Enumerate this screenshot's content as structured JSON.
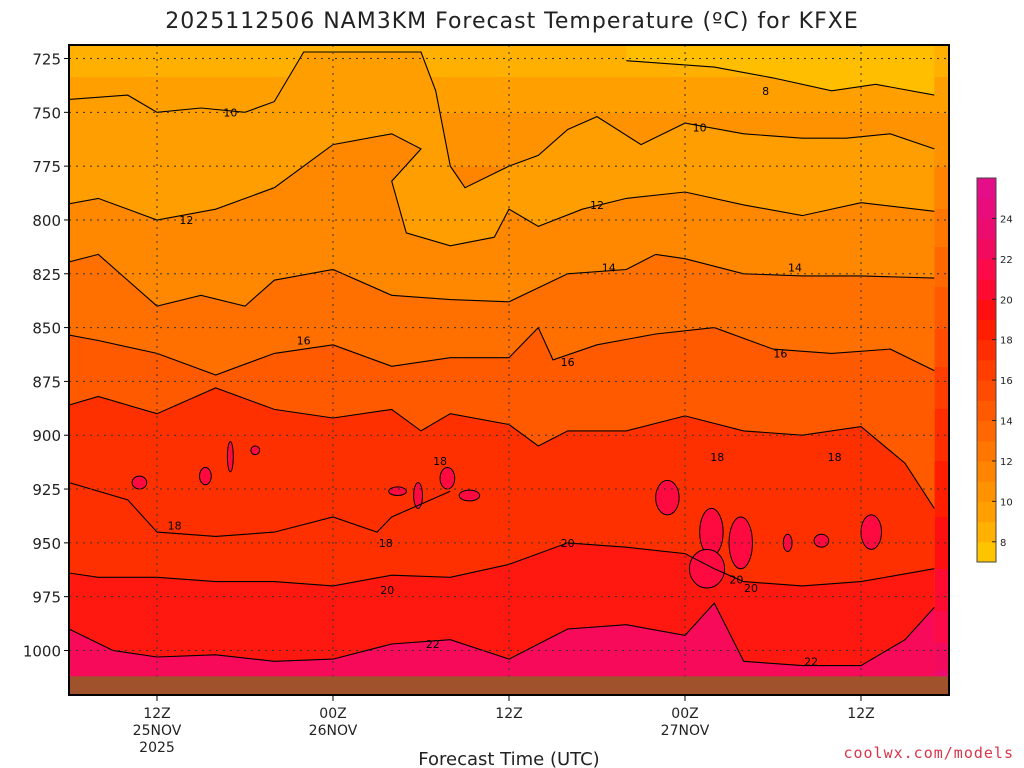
{
  "chart_data": {
    "type": "heatmap",
    "title": "2025112506 NAM3KM Forecast Temperature (ºC) for KFXE",
    "xlabel": "Forecast Time (UTC)",
    "ylabel": "",
    "credit": "coolwx.com/models",
    "y_axis": {
      "ticks": [
        "725",
        "750",
        "775",
        "800",
        "825",
        "850",
        "875",
        "900",
        "925",
        "950",
        "975",
        "1000"
      ],
      "range": [
        1030,
        720
      ],
      "units": "hPa"
    },
    "x_axis": {
      "range_hours": [
        -6,
        54
      ],
      "ticks": [
        {
          "hour": 6,
          "line1": "12Z",
          "line2": "25NOV",
          "line3": "2025"
        },
        {
          "hour": 18,
          "line1": "00Z",
          "line2": "26NOV",
          "line3": ""
        },
        {
          "hour": 30,
          "line1": "12Z",
          "line2": "",
          "line3": ""
        },
        {
          "hour": 42,
          "line1": "00Z",
          "line2": "27NOV",
          "line3": ""
        },
        {
          "hour": 54,
          "line1": "12Z",
          "line2": "",
          "line3": ""
        }
      ]
    },
    "colorbar": {
      "ticks": [
        "8",
        "10",
        "12",
        "14",
        "16",
        "18",
        "20",
        "22",
        "24"
      ],
      "levels": [
        7,
        8,
        9,
        10,
        11,
        12,
        13,
        14,
        15,
        16,
        17,
        18,
        19,
        20,
        21,
        22,
        23,
        24,
        25,
        26
      ],
      "colors": [
        "#ffc400",
        "#ffb000",
        "#ffa000",
        "#ff9200",
        "#ff8400",
        "#ff7600",
        "#ff6800",
        "#ff5a00",
        "#ff4c00",
        "#ff3e00",
        "#ff2e00",
        "#ff1e00",
        "#ff1010",
        "#ff0a30",
        "#fc0a4a",
        "#f20a5e",
        "#ec0b6e",
        "#e80c7c",
        "#e40e88"
      ]
    },
    "ground_color": "#a0522d",
    "temperature_profile": {
      "pressure_levels": [
        725,
        750,
        775,
        800,
        825,
        850,
        875,
        900,
        925,
        950,
        975,
        1000,
        1012
      ],
      "temperatures_c": [
        8.5,
        10.0,
        11.0,
        12.3,
        13.7,
        15.0,
        16.4,
        17.6,
        18.5,
        19.5,
        20.6,
        22.3,
        23.2
      ]
    },
    "contours": [
      {
        "label": "8",
        "series": [
          {
            "hour": 38,
            "p": 726
          },
          {
            "hour": 44,
            "p": 729
          },
          {
            "hour": 48,
            "p": 734
          },
          {
            "hour": 52,
            "p": 740
          },
          {
            "hour": 55,
            "p": 737
          },
          {
            "hour": 59,
            "p": 742
          }
        ]
      },
      {
        "label": "10",
        "series": [
          {
            "hour": -6,
            "p": 757
          },
          {
            "hour": -4,
            "p": 742
          },
          {
            "hour": 0,
            "p": 744
          },
          {
            "hour": 4,
            "p": 742
          },
          {
            "hour": 6,
            "p": 750
          },
          {
            "hour": 9,
            "p": 748
          },
          {
            "hour": 12,
            "p": 750
          },
          {
            "hour": 14,
            "p": 745
          },
          {
            "hour": 16,
            "p": 722
          },
          {
            "hour": 24,
            "p": 722
          },
          {
            "hour": 25,
            "p": 740
          },
          {
            "hour": 26,
            "p": 775
          },
          {
            "hour": 27,
            "p": 785
          },
          {
            "hour": 30,
            "p": 775
          },
          {
            "hour": 32,
            "p": 770
          },
          {
            "hour": 34,
            "p": 758
          },
          {
            "hour": 36,
            "p": 752
          },
          {
            "hour": 39,
            "p": 765
          },
          {
            "hour": 42,
            "p": 755
          },
          {
            "hour": 46,
            "p": 760
          },
          {
            "hour": 50,
            "p": 762
          },
          {
            "hour": 53,
            "p": 762
          },
          {
            "hour": 56,
            "p": 760
          },
          {
            "hour": 59,
            "p": 767
          }
        ]
      },
      {
        "label": "12",
        "series": [
          {
            "hour": -6,
            "p": 798
          },
          {
            "hour": -2,
            "p": 795
          },
          {
            "hour": 2,
            "p": 790
          },
          {
            "hour": 6,
            "p": 800
          },
          {
            "hour": 10,
            "p": 795
          },
          {
            "hour": 14,
            "p": 785
          },
          {
            "hour": 18,
            "p": 765
          },
          {
            "hour": 22,
            "p": 760
          },
          {
            "hour": 24,
            "p": 767
          },
          {
            "hour": 22,
            "p": 782
          },
          {
            "hour": 23,
            "p": 806
          },
          {
            "hour": 26,
            "p": 812
          },
          {
            "hour": 29,
            "p": 808
          },
          {
            "hour": 30,
            "p": 795
          },
          {
            "hour": 32,
            "p": 803
          },
          {
            "hour": 35,
            "p": 795
          },
          {
            "hour": 38,
            "p": 790
          },
          {
            "hour": 42,
            "p": 787
          },
          {
            "hour": 46,
            "p": 793
          },
          {
            "hour": 50,
            "p": 798
          },
          {
            "hour": 54,
            "p": 792
          },
          {
            "hour": 59,
            "p": 796
          }
        ]
      },
      {
        "label": "14",
        "series": [
          {
            "hour": -6,
            "p": 828
          },
          {
            "hour": -2,
            "p": 823
          },
          {
            "hour": 2,
            "p": 816
          },
          {
            "hour": 6,
            "p": 840
          },
          {
            "hour": 9,
            "p": 835
          },
          {
            "hour": 12,
            "p": 840
          },
          {
            "hour": 14,
            "p": 828
          },
          {
            "hour": 18,
            "p": 823
          },
          {
            "hour": 22,
            "p": 835
          },
          {
            "hour": 26,
            "p": 837
          },
          {
            "hour": 30,
            "p": 838
          },
          {
            "hour": 34,
            "p": 825
          },
          {
            "hour": 38,
            "p": 823
          },
          {
            "hour": 40,
            "p": 816
          },
          {
            "hour": 42,
            "p": 818
          },
          {
            "hour": 46,
            "p": 825
          },
          {
            "hour": 50,
            "p": 826
          },
          {
            "hour": 54,
            "p": 826
          },
          {
            "hour": 59,
            "p": 827
          }
        ]
      },
      {
        "label": "16",
        "series": [
          {
            "hour": -6,
            "p": 858
          },
          {
            "hour": -2,
            "p": 851
          },
          {
            "hour": 2,
            "p": 856
          },
          {
            "hour": 6,
            "p": 862
          },
          {
            "hour": 10,
            "p": 872
          },
          {
            "hour": 14,
            "p": 862
          },
          {
            "hour": 18,
            "p": 858
          },
          {
            "hour": 22,
            "p": 868
          },
          {
            "hour": 26,
            "p": 864
          },
          {
            "hour": 30,
            "p": 864
          },
          {
            "hour": 32,
            "p": 850
          },
          {
            "hour": 33,
            "p": 865
          },
          {
            "hour": 36,
            "p": 858
          },
          {
            "hour": 40,
            "p": 853
          },
          {
            "hour": 44,
            "p": 850
          },
          {
            "hour": 48,
            "p": 860
          },
          {
            "hour": 52,
            "p": 862
          },
          {
            "hour": 56,
            "p": 860
          },
          {
            "hour": 59,
            "p": 870
          }
        ]
      },
      {
        "label": "18",
        "series": [
          {
            "hour": -6,
            "p": 942
          },
          {
            "hour": -2,
            "p": 918
          },
          {
            "hour": 4,
            "p": 930
          },
          {
            "hour": 6,
            "p": 945
          },
          {
            "hour": 10,
            "p": 947
          },
          {
            "hour": 14,
            "p": 945
          },
          {
            "hour": 18,
            "p": 938
          },
          {
            "hour": 21,
            "p": 945
          },
          {
            "hour": 22,
            "p": 938
          },
          {
            "hour": 26,
            "p": 926
          }
        ]
      },
      {
        "label": "18",
        "series": [
          {
            "hour": -6,
            "p": 897
          },
          {
            "hour": -2,
            "p": 890
          },
          {
            "hour": 2,
            "p": 882
          },
          {
            "hour": 6,
            "p": 890
          },
          {
            "hour": 10,
            "p": 878
          },
          {
            "hour": 14,
            "p": 888
          },
          {
            "hour": 18,
            "p": 892
          },
          {
            "hour": 22,
            "p": 888
          },
          {
            "hour": 24,
            "p": 898
          },
          {
            "hour": 26,
            "p": 890
          },
          {
            "hour": 30,
            "p": 895
          },
          {
            "hour": 32,
            "p": 905
          },
          {
            "hour": 34,
            "p": 898
          },
          {
            "hour": 38,
            "p": 898
          },
          {
            "hour": 42,
            "p": 891
          },
          {
            "hour": 46,
            "p": 898
          },
          {
            "hour": 50,
            "p": 900
          },
          {
            "hour": 54,
            "p": 896
          },
          {
            "hour": 57,
            "p": 913
          },
          {
            "hour": 59,
            "p": 934
          }
        ]
      },
      {
        "label": "20",
        "series": [
          {
            "hour": -6,
            "p": 962
          },
          {
            "hour": -2,
            "p": 962
          },
          {
            "hour": 2,
            "p": 966
          },
          {
            "hour": 6,
            "p": 966
          },
          {
            "hour": 10,
            "p": 968
          },
          {
            "hour": 14,
            "p": 968
          },
          {
            "hour": 18,
            "p": 970
          },
          {
            "hour": 22,
            "p": 965
          },
          {
            "hour": 26,
            "p": 966
          },
          {
            "hour": 30,
            "p": 960
          },
          {
            "hour": 34,
            "p": 950
          },
          {
            "hour": 38,
            "p": 952
          },
          {
            "hour": 42,
            "p": 955
          },
          {
            "hour": 44,
            "p": 962
          },
          {
            "hour": 46,
            "p": 968
          },
          {
            "hour": 50,
            "p": 970
          },
          {
            "hour": 54,
            "p": 968
          },
          {
            "hour": 59,
            "p": 962
          }
        ]
      },
      {
        "label": "22",
        "series": [
          {
            "hour": -6,
            "p": 975
          },
          {
            "hour": -3,
            "p": 980
          },
          {
            "hour": 0,
            "p": 990
          },
          {
            "hour": 3,
            "p": 1000
          },
          {
            "hour": 6,
            "p": 1003
          },
          {
            "hour": 10,
            "p": 1002
          },
          {
            "hour": 14,
            "p": 1005
          },
          {
            "hour": 18,
            "p": 1004
          },
          {
            "hour": 22,
            "p": 997
          },
          {
            "hour": 26,
            "p": 995
          },
          {
            "hour": 30,
            "p": 1004
          },
          {
            "hour": 34,
            "p": 990
          },
          {
            "hour": 38,
            "p": 988
          },
          {
            "hour": 42,
            "p": 993
          },
          {
            "hour": 44,
            "p": 978
          },
          {
            "hour": 46,
            "p": 1005
          },
          {
            "hour": 50,
            "p": 1007
          },
          {
            "hour": 54,
            "p": 1007
          },
          {
            "hour": 57,
            "p": 995
          },
          {
            "hour": 59,
            "p": 980
          }
        ]
      }
    ],
    "contour_labels": [
      {
        "text": "8",
        "hour": 47.5,
        "p": 740
      },
      {
        "text": "10",
        "hour": 11,
        "p": 750
      },
      {
        "text": "10",
        "hour": 43,
        "p": 757
      },
      {
        "text": "12",
        "hour": 8,
        "p": 800
      },
      {
        "text": "12",
        "hour": 36,
        "p": 793
      },
      {
        "text": "14",
        "hour": -5,
        "p": 860
      },
      {
        "text": "14",
        "hour": 36.8,
        "p": 822
      },
      {
        "text": "14",
        "hour": 49.5,
        "p": 822
      },
      {
        "text": "16",
        "hour": 16,
        "p": 856
      },
      {
        "text": "16",
        "hour": 34,
        "p": 866
      },
      {
        "text": "16",
        "hour": 48.5,
        "p": 862
      },
      {
        "text": "18",
        "hour": 7.2,
        "p": 942
      },
      {
        "text": "18",
        "hour": 25.3,
        "p": 912
      },
      {
        "text": "18",
        "hour": 21.6,
        "p": 950
      },
      {
        "text": "18",
        "hour": 44.2,
        "p": 910
      },
      {
        "text": "18",
        "hour": 52.2,
        "p": 910
      },
      {
        "text": "20",
        "hour": 34,
        "p": 950
      },
      {
        "text": "20",
        "hour": 21.7,
        "p": 972
      },
      {
        "text": "20",
        "hour": 45.5,
        "p": 967
      },
      {
        "text": "20",
        "hour": 46.5,
        "p": 971
      },
      {
        "text": "22",
        "hour": 24.8,
        "p": 997
      },
      {
        "text": "22",
        "hour": 50.6,
        "p": 1005
      }
    ],
    "cells": [
      {
        "hour": 4.8,
        "p": 922,
        "rx": 0.5,
        "rp": 3
      },
      {
        "hour": 9.3,
        "p": 919,
        "rx": 0.4,
        "rp": 4
      },
      {
        "hour": 11,
        "p": 910,
        "rx": 0.2,
        "rp": 7
      },
      {
        "hour": 12.7,
        "p": 907,
        "rx": 0.3,
        "rp": 2
      },
      {
        "hour": 22.4,
        "p": 926,
        "rx": 0.6,
        "rp": 2
      },
      {
        "hour": 23.8,
        "p": 928,
        "rx": 0.3,
        "rp": 6
      },
      {
        "hour": 25.8,
        "p": 920,
        "rx": 0.5,
        "rp": 5
      },
      {
        "hour": 27.3,
        "p": 928,
        "rx": 0.7,
        "rp": 2.5
      },
      {
        "hour": 40.8,
        "p": 929,
        "rx": 0.8,
        "rp": 8
      },
      {
        "hour": 43.8,
        "p": 945,
        "rx": 0.8,
        "rp": 11
      },
      {
        "hour": 49,
        "p": 950,
        "rx": 0.3,
        "rp": 4
      },
      {
        "hour": 51.3,
        "p": 949,
        "rx": 0.5,
        "rp": 3
      },
      {
        "hour": 54.7,
        "p": 945,
        "rx": 0.7,
        "rp": 8
      },
      {
        "hour": 43.5,
        "p": 962,
        "rx": 1.2,
        "rp": 9
      },
      {
        "hour": 45.8,
        "p": 950,
        "rx": 0.8,
        "rp": 12
      }
    ]
  }
}
